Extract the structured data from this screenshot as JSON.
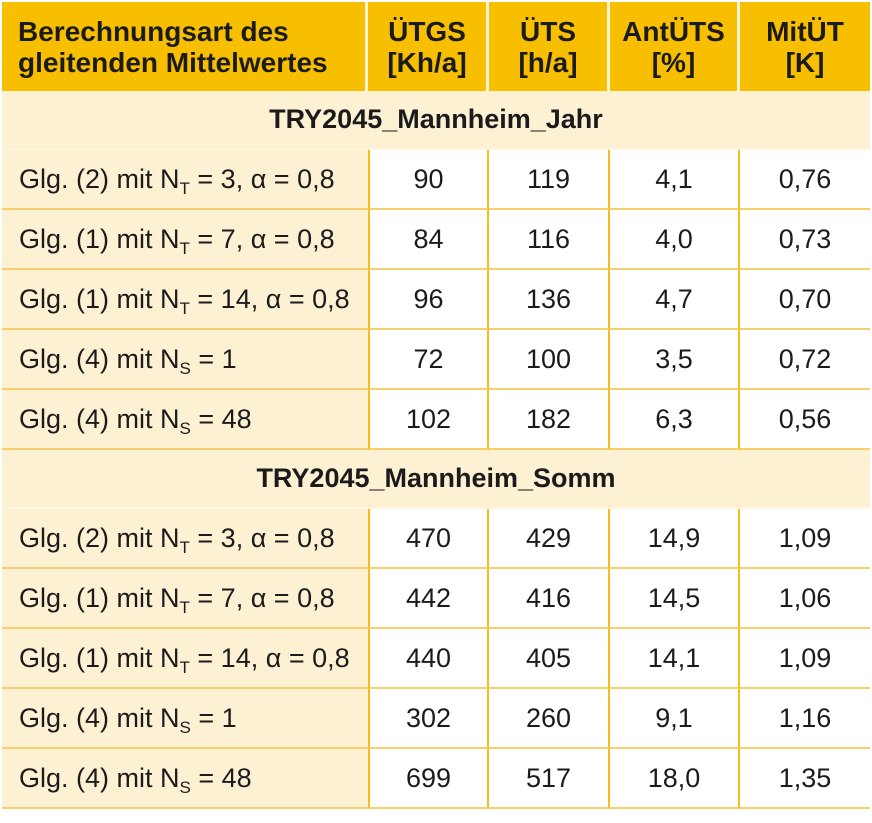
{
  "header": {
    "col0": [
      "Berechnungsart des",
      "gleitenden Mittelwertes"
    ],
    "col1": [
      "ÜTGS",
      "[Kh/a]"
    ],
    "col2": [
      "ÜTS",
      "[h/a]"
    ],
    "col3": [
      "AntÜTS",
      "[%]"
    ],
    "col4": [
      "MitÜT",
      "[K]"
    ]
  },
  "sections": [
    {
      "title": "TRY2045_Mannheim_Jahr",
      "rows": [
        {
          "pre": "Glg. (2) mit N",
          "sub": "T",
          "post": " = 3, α = 0,8",
          "values": [
            "90",
            "119",
            "4,1",
            "0,76"
          ]
        },
        {
          "pre": "Glg. (1) mit N",
          "sub": "T",
          "post": " = 7, α = 0,8",
          "values": [
            "84",
            "116",
            "4,0",
            "0,73"
          ]
        },
        {
          "pre": "Glg. (1) mit N",
          "sub": "T",
          "post": " = 14, α = 0,8",
          "values": [
            "96",
            "136",
            "4,7",
            "0,70"
          ]
        },
        {
          "pre": "Glg. (4) mit N",
          "sub": "S",
          "post": " = 1",
          "values": [
            "72",
            "100",
            "3,5",
            "0,72"
          ]
        },
        {
          "pre": "Glg. (4) mit N",
          "sub": "S",
          "post": " = 48",
          "values": [
            "102",
            "182",
            "6,3",
            "0,56"
          ]
        }
      ]
    },
    {
      "title": "TRY2045_Mannheim_Somm",
      "rows": [
        {
          "pre": "Glg. (2) mit N",
          "sub": "T",
          "post": " = 3, α = 0,8",
          "values": [
            "470",
            "429",
            "14,9",
            "1,09"
          ]
        },
        {
          "pre": "Glg. (1) mit N",
          "sub": "T",
          "post": " = 7, α = 0,8",
          "values": [
            "442",
            "416",
            "14,5",
            "1,06"
          ]
        },
        {
          "pre": "Glg. (1) mit N",
          "sub": "T",
          "post": " = 14, α = 0,8",
          "values": [
            "440",
            "405",
            "14,1",
            "1,09"
          ]
        },
        {
          "pre": "Glg. (4) mit N",
          "sub": "S",
          "post": " = 1",
          "values": [
            "302",
            "260",
            "9,1",
            "1,16"
          ]
        },
        {
          "pre": "Glg. (4) mit N",
          "sub": "S",
          "post": " = 48",
          "values": [
            "699",
            "517",
            "18,0",
            "1,35"
          ]
        }
      ]
    }
  ],
  "colors": {
    "header_bg": "#f8bf00",
    "label_bg": "#fdf1d4",
    "grid": "#f6bb1c"
  }
}
